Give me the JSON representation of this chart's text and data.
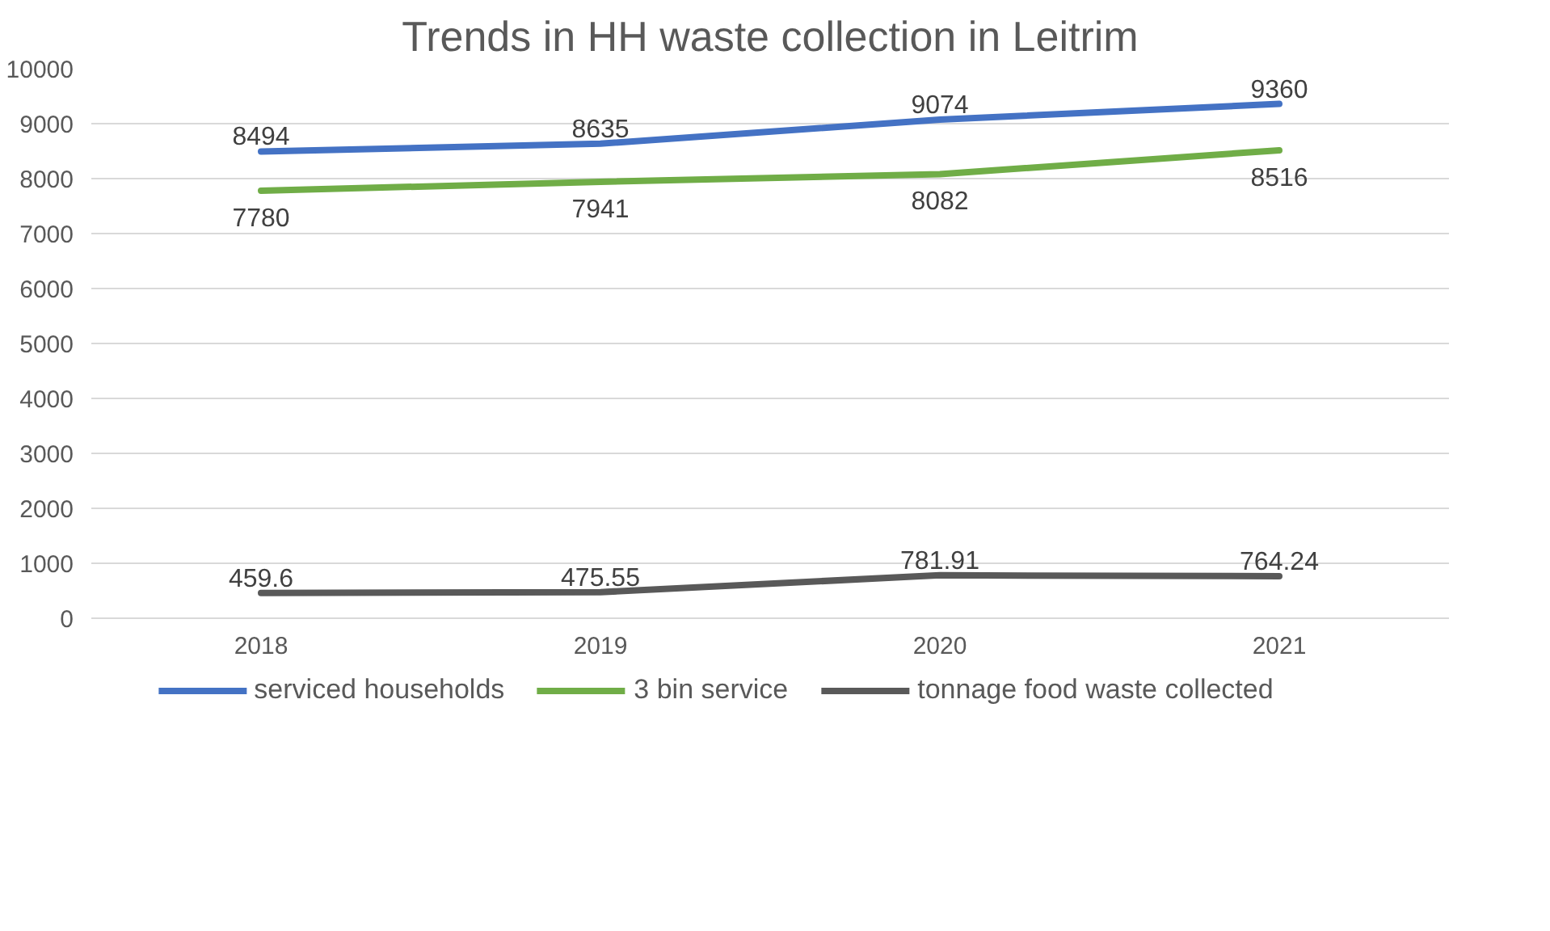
{
  "chart_data": {
    "type": "line",
    "title": "Trends in HH waste collection in Leitrim",
    "categories": [
      "2018",
      "2019",
      "2020",
      "2021"
    ],
    "series": [
      {
        "name": "serviced households",
        "color": "#4472c4",
        "values": [
          8494,
          8635,
          9074,
          9360
        ]
      },
      {
        "name": "3 bin service",
        "color": "#70ad47",
        "values": [
          7780,
          7941,
          8082,
          8516
        ]
      },
      {
        "name": "tonnage food waste collected",
        "color": "#595959",
        "values": [
          459.6,
          475.55,
          781.91,
          764.24
        ]
      }
    ],
    "ylim": [
      0,
      10000
    ],
    "yticks": [
      0,
      1000,
      2000,
      3000,
      4000,
      5000,
      6000,
      7000,
      8000,
      9000,
      10000
    ],
    "grid": "y",
    "legend": "bottom",
    "data_labels": true,
    "marker": "none",
    "line_style": "solid"
  }
}
